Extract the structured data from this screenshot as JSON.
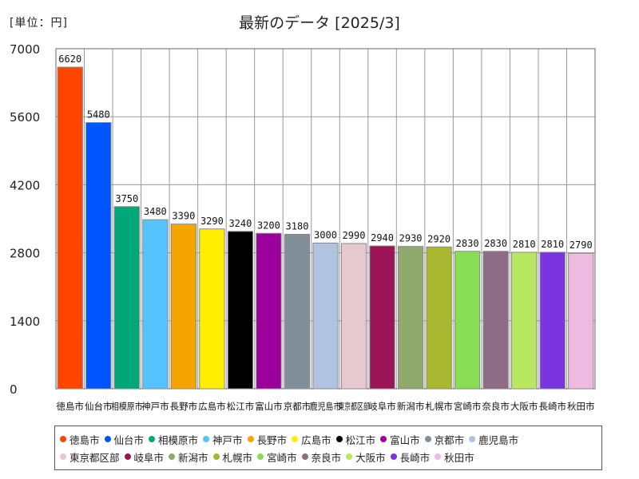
{
  "unit_label": "[単位：円]",
  "chart_data": {
    "type": "bar",
    "title": "最新のデータ [2025/3]",
    "xlabel": "",
    "ylabel": "",
    "ylim": [
      0,
      7000
    ],
    "yticks": [
      0,
      1400,
      2800,
      4200,
      5600,
      7000
    ],
    "grid": true,
    "legend_position": "bottom",
    "categories": [
      "徳島市",
      "仙台市",
      "相模原市",
      "神戸市",
      "長野市",
      "広島市",
      "松江市",
      "富山市",
      "京都市",
      "鹿児島市",
      "東京都区部",
      "岐阜市",
      "新潟市",
      "札幌市",
      "宮崎市",
      "奈良市",
      "大阪市",
      "長崎市",
      "秋田市"
    ],
    "values": [
      6620,
      5480,
      3750,
      3480,
      3390,
      3290,
      3240,
      3200,
      3180,
      3000,
      2990,
      2940,
      2930,
      2920,
      2830,
      2830,
      2810,
      2810,
      2790
    ],
    "colors": [
      "#ff4500",
      "#0055ff",
      "#00a878",
      "#55c3ff",
      "#f5a500",
      "#ffee00",
      "#000000",
      "#9b009b",
      "#808f9a",
      "#b0c4e0",
      "#e6c8d0",
      "#9b1456",
      "#8faa6c",
      "#a8b830",
      "#88dd55",
      "#8e6c85",
      "#b8e860",
      "#7a35e0",
      "#eebbe0"
    ]
  }
}
